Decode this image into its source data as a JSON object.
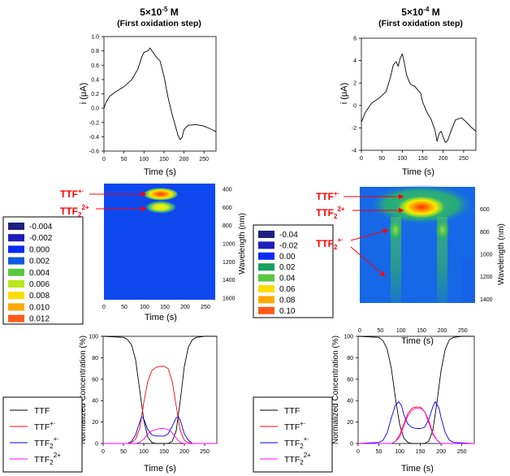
{
  "panels": {
    "left": {
      "title": "5×10",
      "title_exp": "-5",
      "title_unit": " M",
      "subtitle": "(First oxidation step)"
    },
    "right": {
      "title": "5×10",
      "title_exp": "-4",
      "title_unit": " M",
      "subtitle": "(First oxidation step)"
    }
  },
  "labels": {
    "ttf_radical": "TTF",
    "ttf_radical_sup": "+·",
    "ttf2_dication": "TTF",
    "ttf2_dication_sub": "2",
    "ttf2_dication_sup": "2+",
    "ttf2_radical": "TTF",
    "ttf2_radical_sub": "2",
    "ttf2_radical_sup": "+·"
  },
  "colors": {
    "ttf": "#000000",
    "ttf_radical": "#ff0000",
    "ttf2_radical": "#0000ff",
    "ttf2_dication": "#ff00ff",
    "annotation": "#ff0000"
  },
  "chart_data": [
    {
      "id": "left-cv",
      "type": "line",
      "xlabel": "Time (s)",
      "ylabel": "i (μA)",
      "xlim": [
        0,
        280
      ],
      "ylim": [
        -0.6,
        1.0
      ],
      "xticks": [
        0,
        50,
        100,
        150,
        200,
        250
      ],
      "yticks": [
        -0.6,
        -0.4,
        -0.2,
        0.0,
        0.2,
        0.4,
        0.6,
        0.8,
        1.0
      ],
      "ytick_labels": [
        "-0.6",
        "-0.4",
        "-0.2",
        "0.0",
        "0.2",
        "0.4",
        "0.6",
        "0.8",
        "1.0"
      ],
      "series": [
        {
          "x": [
            0,
            5,
            15,
            30,
            50,
            70,
            85,
            95,
            100,
            105,
            110,
            115,
            120,
            130,
            140,
            150,
            160,
            170,
            180,
            185,
            190,
            195,
            200,
            210,
            230,
            250,
            270,
            280
          ],
          "y": [
            0.0,
            0.08,
            0.17,
            0.23,
            0.3,
            0.4,
            0.55,
            0.72,
            0.78,
            0.79,
            0.8,
            0.84,
            0.8,
            0.72,
            0.66,
            0.45,
            0.15,
            -0.08,
            -0.28,
            -0.38,
            -0.44,
            -0.41,
            -0.3,
            -0.24,
            -0.23,
            -0.25,
            -0.3,
            -0.33
          ]
        }
      ]
    },
    {
      "id": "right-cv",
      "type": "line",
      "xlabel": "Time (s)",
      "ylabel": "i (μA)",
      "xlim": [
        0,
        280
      ],
      "ylim": [
        -4,
        6
      ],
      "xticks": [
        0,
        50,
        100,
        150,
        200,
        250
      ],
      "yticks": [
        -4,
        -2,
        0,
        2,
        4,
        6
      ],
      "ytick_labels": [
        "-4",
        "-2",
        "0",
        "2",
        "4",
        "6"
      ],
      "series": [
        {
          "x": [
            0,
            10,
            25,
            45,
            60,
            70,
            78,
            85,
            90,
            95,
            100,
            105,
            110,
            115,
            120,
            130,
            140,
            145,
            150,
            160,
            170,
            180,
            185,
            190,
            195,
            200,
            205,
            210,
            220,
            230,
            245,
            260,
            270,
            280
          ],
          "y": [
            -1.5,
            -0.6,
            0.2,
            0.7,
            1.2,
            2.4,
            3.6,
            3.9,
            3.5,
            4.2,
            4.6,
            3.8,
            2.8,
            2.3,
            1.9,
            1.7,
            1.3,
            1.1,
            0.3,
            -0.6,
            -1.2,
            -2.2,
            -3.2,
            -2.5,
            -2.3,
            -2.8,
            -3.3,
            -3.2,
            -2.2,
            -1.3,
            -1.1,
            -1.6,
            -2.0,
            -2.3
          ]
        }
      ]
    },
    {
      "id": "left-spectro",
      "type": "heatmap",
      "xlabel": "Time (s)",
      "ylabel": "Wavelength (nm)",
      "xlim": [
        0,
        280
      ],
      "ylim": [
        400,
        1600
      ],
      "xticks": [
        0,
        50,
        100,
        150,
        200,
        250
      ],
      "yticks": [
        400,
        600,
        800,
        1000,
        1200,
        1400,
        1600
      ],
      "colorbar": [
        "-0.004",
        "-0.002",
        "0.000",
        "0.002",
        "0.004",
        "0.006",
        "0.008",
        "0.010",
        "0.012"
      ],
      "colorbar_colors": [
        "#1f1f82",
        "#1d1dbb",
        "#0a2bf5",
        "#0f59e0",
        "#58c840",
        "#b8e61a",
        "#ffdd00",
        "#ffa800",
        "#ff5a1a"
      ]
    },
    {
      "id": "right-spectro",
      "type": "heatmap",
      "xlabel": "Time (s)",
      "ylabel": "Wavelength (nm)",
      "xlim": [
        0,
        280
      ],
      "ylim": [
        400,
        1600
      ],
      "xticks": [
        0,
        50,
        100,
        150,
        200,
        250
      ],
      "yticks": [
        600,
        800,
        1000,
        1200,
        1400
      ],
      "colorbar": [
        "-0.04",
        "-0.02",
        "0.00",
        "0.02",
        "0.04",
        "0.06",
        "0.08",
        "0.10"
      ],
      "colorbar_colors": [
        "#1f1f82",
        "#1d1dbb",
        "#0a2bf5",
        "#16a060",
        "#58c840",
        "#ffdd00",
        "#ffa800",
        "#ff5a1a"
      ]
    },
    {
      "id": "left-conc",
      "type": "line",
      "xlabel": "Time (s)",
      "ylabel": "Normalized Concentration (%)",
      "xlim": [
        0,
        280
      ],
      "ylim": [
        0,
        100
      ],
      "xticks": [
        0,
        50,
        100,
        150,
        200,
        250
      ],
      "yticks": [
        0,
        20,
        40,
        60,
        80,
        100
      ],
      "series": [
        {
          "key": "ttf",
          "x": [
            0,
            50,
            60,
            70,
            80,
            90,
            100,
            110,
            120,
            130,
            140,
            150,
            160,
            170,
            180,
            190,
            200,
            210,
            220,
            230,
            250,
            280
          ],
          "y": [
            100,
            99,
            97,
            92,
            78,
            50,
            22,
            6,
            1,
            0,
            0,
            0,
            0,
            2,
            12,
            40,
            72,
            90,
            97,
            99,
            100,
            100
          ]
        },
        {
          "key": "ttf_radical",
          "x": [
            0,
            60,
            70,
            80,
            90,
            100,
            110,
            120,
            130,
            140,
            150,
            160,
            170,
            180,
            190,
            200,
            210,
            220,
            280
          ],
          "y": [
            0,
            0,
            1,
            4,
            14,
            38,
            58,
            68,
            71,
            72,
            72,
            70,
            58,
            35,
            12,
            3,
            1,
            0,
            0
          ]
        },
        {
          "key": "ttf2_radical",
          "x": [
            0,
            60,
            70,
            80,
            90,
            95,
            100,
            110,
            120,
            130,
            140,
            150,
            160,
            170,
            180,
            185,
            190,
            200,
            210,
            220,
            280
          ],
          "y": [
            0,
            0,
            2,
            8,
            20,
            25,
            23,
            13,
            8,
            7,
            7,
            7,
            9,
            16,
            24,
            25,
            22,
            9,
            3,
            0,
            0
          ]
        },
        {
          "key": "ttf2_dication",
          "x": [
            0,
            80,
            90,
            100,
            110,
            120,
            130,
            140,
            150,
            160,
            170,
            180,
            190,
            200,
            280
          ],
          "y": [
            0,
            0,
            1,
            4,
            9,
            12,
            13,
            14,
            14,
            13,
            10,
            5,
            1,
            0,
            0
          ]
        }
      ]
    },
    {
      "id": "right-conc",
      "type": "line",
      "xlabel": "Time (s)",
      "ylabel": "Normalized Concentration (%)",
      "xlim": [
        0,
        280
      ],
      "ylim": [
        0,
        100
      ],
      "xticks": [
        0,
        50,
        100,
        150,
        200,
        250
      ],
      "yticks": [
        0,
        20,
        40,
        60,
        80,
        100
      ],
      "series": [
        {
          "key": "ttf",
          "x": [
            0,
            50,
            60,
            70,
            80,
            90,
            100,
            110,
            120,
            130,
            140,
            150,
            160,
            170,
            180,
            190,
            200,
            210,
            220,
            230,
            250,
            280
          ],
          "y": [
            100,
            99,
            96,
            88,
            70,
            42,
            18,
            5,
            1,
            0,
            0,
            0,
            0,
            2,
            12,
            38,
            68,
            88,
            97,
            99,
            100,
            100
          ]
        },
        {
          "key": "ttf_radical",
          "x": [
            0,
            80,
            90,
            100,
            110,
            120,
            130,
            140,
            150,
            160,
            170,
            180,
            190,
            200,
            280
          ],
          "y": [
            0,
            0,
            2,
            8,
            18,
            28,
            33,
            34,
            34,
            30,
            20,
            9,
            3,
            0,
            0
          ]
        },
        {
          "key": "ttf2_radical",
          "x": [
            0,
            50,
            60,
            70,
            80,
            90,
            98,
            105,
            110,
            120,
            130,
            140,
            150,
            160,
            170,
            180,
            186,
            195,
            200,
            210,
            220,
            230,
            280
          ],
          "y": [
            0,
            1,
            3,
            10,
            24,
            36,
            39,
            35,
            27,
            18,
            15,
            14,
            14,
            15,
            22,
            34,
            39,
            33,
            24,
            10,
            3,
            1,
            0
          ]
        },
        {
          "key": "ttf2_dication",
          "x": [
            0,
            80,
            90,
            100,
            110,
            120,
            130,
            140,
            150,
            160,
            170,
            180,
            190,
            200,
            280
          ],
          "y": [
            0,
            0,
            2,
            6,
            16,
            26,
            31,
            33,
            33,
            30,
            22,
            10,
            3,
            0,
            0
          ]
        }
      ]
    }
  ]
}
